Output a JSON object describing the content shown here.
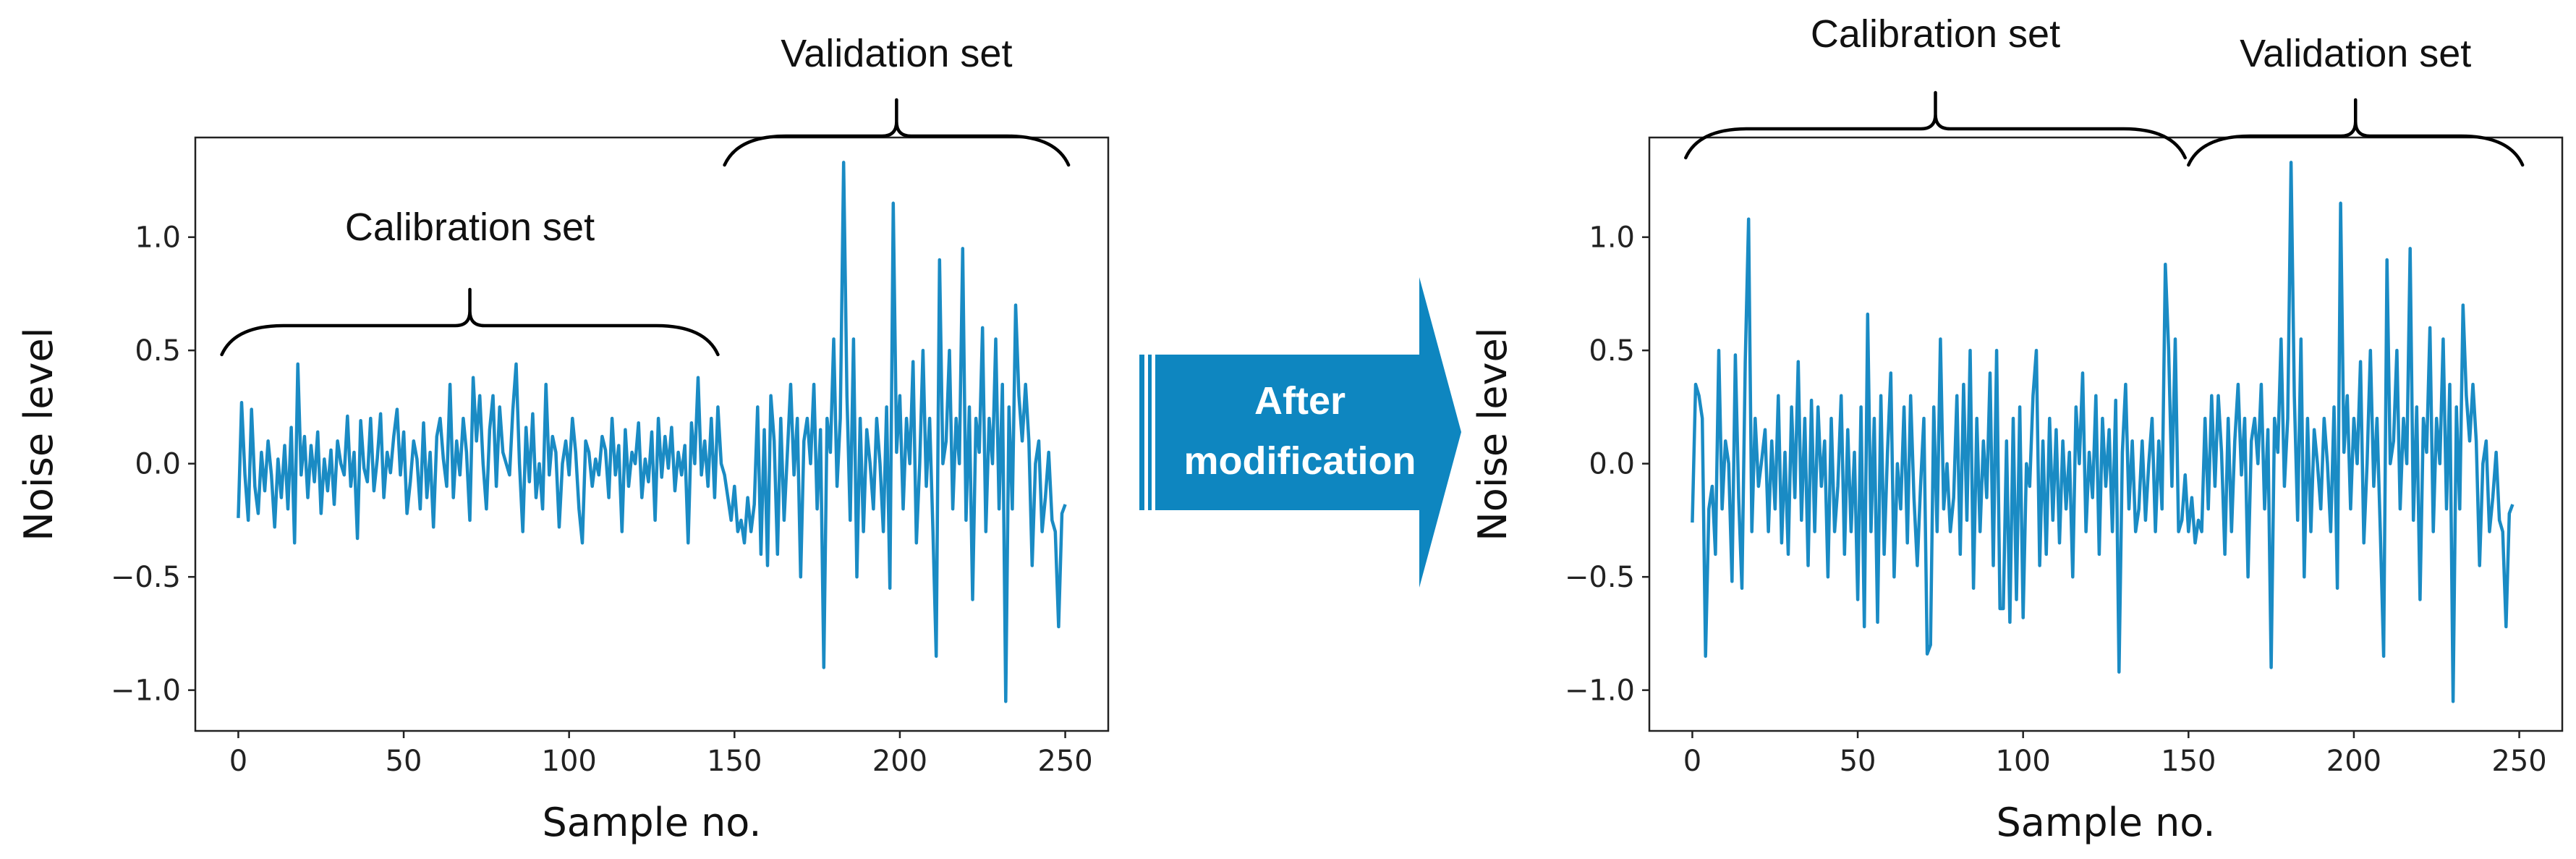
{
  "chart_data": [
    {
      "type": "line",
      "panel": "before",
      "title": "",
      "xlabel": "Sample no.",
      "ylabel": "Noise level",
      "xlim": [
        -13,
        263
      ],
      "ylim": [
        -1.18,
        1.44
      ],
      "xticks": [
        0,
        50,
        100,
        150,
        200,
        250
      ],
      "yticks": [
        -1.0,
        -0.5,
        0.0,
        0.5,
        1.0
      ],
      "xtick_labels": [
        "0",
        "50",
        "100",
        "150",
        "200",
        "250"
      ],
      "ytick_labels": [
        "−1.0",
        "−0.5",
        "0.0",
        "0.5",
        "1.0"
      ],
      "series_color": "#1a8bc4",
      "annotations": {
        "calibration": {
          "label": "Calibration set",
          "x_start": -5,
          "x_end": 145
        },
        "validation": {
          "label": "Validation set",
          "x_start": 147,
          "x_end": 251
        }
      },
      "series": [
        {
          "name": "noise",
          "x_start": 0,
          "values": [
            -0.24,
            0.27,
            -0.05,
            -0.25,
            0.24,
            -0.1,
            -0.22,
            0.05,
            -0.12,
            0.1,
            -0.05,
            -0.28,
            0.02,
            -0.15,
            0.08,
            -0.2,
            0.16,
            -0.35,
            0.44,
            -0.05,
            0.12,
            -0.15,
            0.08,
            -0.08,
            0.14,
            -0.22,
            0.02,
            -0.12,
            0.06,
            -0.18,
            0.1,
            0.0,
            -0.05,
            0.21,
            -0.1,
            0.05,
            -0.33,
            0.19,
            -0.02,
            -0.08,
            0.2,
            -0.12,
            0.02,
            0.22,
            -0.15,
            0.05,
            -0.04,
            0.12,
            0.24,
            -0.05,
            0.14,
            -0.22,
            -0.08,
            0.1,
            0.02,
            -0.2,
            0.18,
            -0.15,
            0.05,
            -0.28,
            0.12,
            0.2,
            0.02,
            -0.1,
            0.35,
            -0.15,
            0.1,
            -0.05,
            0.2,
            0.05,
            -0.25,
            0.38,
            0.1,
            0.3,
            0.0,
            -0.2,
            0.15,
            0.3,
            -0.1,
            0.25,
            0.05,
            0.0,
            -0.05,
            0.24,
            0.44,
            0.0,
            -0.3,
            0.16,
            -0.08,
            0.22,
            -0.15,
            0.0,
            -0.2,
            0.35,
            -0.05,
            0.12,
            0.05,
            -0.28,
            0.0,
            0.1,
            -0.05,
            0.2,
            0.05,
            -0.2,
            -0.35,
            0.1,
            0.05,
            -0.1,
            0.02,
            -0.05,
            0.12,
            0.06,
            -0.15,
            0.2,
            -0.05,
            0.08,
            -0.3,
            0.15,
            -0.1,
            0.05,
            0.0,
            0.18,
            -0.15,
            0.02,
            -0.08,
            0.14,
            -0.25,
            0.2,
            -0.06,
            0.12,
            -0.02,
            0.16,
            -0.12,
            0.05,
            -0.05,
            0.08,
            -0.35,
            0.18,
            0.0,
            0.38,
            -0.05,
            0.1,
            -0.1,
            0.2,
            -0.15,
            0.25,
            0.0,
            -0.05,
            -0.15,
            -0.25,
            -0.1,
            -0.3,
            -0.25,
            -0.35,
            -0.15,
            -0.3,
            -0.18,
            0.25,
            -0.4,
            0.15,
            -0.45,
            0.3,
            0.1,
            -0.4,
            0.2,
            -0.25,
            0.05,
            0.35,
            -0.05,
            0.2,
            -0.5,
            0.1,
            0.2,
            0.0,
            0.35,
            -0.2,
            0.15,
            -0.9,
            0.2,
            0.05,
            0.55,
            -0.1,
            0.2,
            1.33,
            0.3,
            -0.25,
            0.55,
            -0.5,
            0.2,
            -0.3,
            0.15,
            0.0,
            -0.2,
            0.2,
            0.0,
            -0.3,
            0.25,
            -0.55,
            1.15,
            0.05,
            0.3,
            -0.2,
            0.2,
            0.0,
            0.45,
            -0.35,
            0.0,
            0.5,
            -0.1,
            0.2,
            -0.3,
            -0.85,
            0.9,
            0.0,
            0.1,
            0.5,
            -0.2,
            0.2,
            0.0,
            0.95,
            -0.25,
            0.25,
            -0.6,
            0.2,
            0.05,
            0.6,
            -0.3,
            0.2,
            0.0,
            0.55,
            -0.2,
            0.35,
            -1.05,
            0.25,
            -0.2,
            0.7,
            0.3,
            0.1,
            0.35,
            0.1,
            -0.45,
            0.0,
            0.1,
            -0.3,
            -0.15,
            0.05,
            -0.25,
            -0.3,
            -0.72,
            -0.22,
            -0.18
          ]
        }
      ]
    },
    {
      "type": "line",
      "panel": "after",
      "title": "",
      "xlabel": "Sample no.",
      "ylabel": "Noise level",
      "xlim": [
        -13,
        263
      ],
      "ylim": [
        -1.18,
        1.44
      ],
      "xticks": [
        0,
        50,
        100,
        150,
        200,
        250
      ],
      "yticks": [
        -1.0,
        -0.5,
        0.0,
        0.5,
        1.0
      ],
      "xtick_labels": [
        "0",
        "50",
        "100",
        "150",
        "200",
        "250"
      ],
      "ytick_labels": [
        "−1.0",
        "−0.5",
        "0.0",
        "0.5",
        "1.0"
      ],
      "series_color": "#1a8bc4",
      "annotations": {
        "calibration": {
          "label": "Calibration set",
          "x_start": -2,
          "x_end": 149
        },
        "validation": {
          "label": "Validation set",
          "x_start": 150,
          "x_end": 251
        }
      },
      "series": [
        {
          "name": "noise",
          "x_start": 0,
          "values": [
            -0.26,
            0.35,
            0.3,
            0.2,
            -0.85,
            -0.2,
            -0.1,
            -0.4,
            0.5,
            -0.2,
            0.1,
            0.0,
            -0.52,
            0.48,
            -0.15,
            -0.55,
            0.45,
            1.08,
            -0.3,
            0.2,
            -0.1,
            0.02,
            0.15,
            -0.3,
            0.1,
            -0.2,
            0.3,
            -0.35,
            0.05,
            -0.4,
            0.25,
            -0.15,
            0.45,
            -0.25,
            0.2,
            -0.45,
            0.28,
            -0.3,
            0.25,
            -0.1,
            0.1,
            -0.5,
            0.2,
            -0.3,
            -0.1,
            0.3,
            -0.4,
            0.15,
            -0.3,
            0.05,
            -0.6,
            0.25,
            -0.72,
            0.66,
            -0.3,
            0.2,
            -0.7,
            0.3,
            -0.4,
            0.05,
            0.4,
            -0.5,
            0.0,
            -0.2,
            0.25,
            -0.35,
            0.3,
            -0.15,
            -0.45,
            -0.1,
            0.2,
            -0.84,
            -0.8,
            0.25,
            -0.3,
            0.55,
            -0.2,
            0.0,
            -0.3,
            -0.15,
            0.3,
            -0.4,
            0.35,
            -0.25,
            0.5,
            -0.55,
            0.2,
            -0.3,
            0.1,
            -0.15,
            0.4,
            -0.45,
            0.5,
            -0.64,
            -0.64,
            0.1,
            -0.7,
            0.2,
            -0.6,
            0.25,
            -0.68,
            0.0,
            -0.1,
            0.3,
            0.5,
            -0.45,
            0.1,
            -0.4,
            0.2,
            -0.25,
            0.15,
            -0.35,
            0.1,
            -0.2,
            0.05,
            -0.5,
            0.25,
            0.0,
            0.4,
            -0.3,
            0.05,
            -0.15,
            0.3,
            -0.4,
            0.2,
            -0.1,
            0.15,
            -0.3,
            0.28,
            -0.92,
            0.05,
            0.35,
            -0.2,
            0.1,
            -0.3,
            -0.2,
            0.1,
            -0.25,
            0.0,
            0.2,
            -0.3,
            0.1,
            -0.2,
            0.88,
            0.5,
            -0.1,
            0.55,
            -0.3,
            -0.25,
            -0.05,
            -0.3,
            -0.15,
            -0.35,
            -0.25,
            -0.3,
            0.2,
            -0.2,
            0.3,
            -0.1,
            0.3,
            0.05,
            -0.4,
            0.2,
            -0.3,
            0.1,
            0.35,
            -0.05,
            0.2,
            -0.5,
            0.1,
            0.2,
            0.0,
            0.35,
            -0.2,
            0.15,
            -0.9,
            0.2,
            0.05,
            0.55,
            -0.1,
            0.2,
            1.33,
            0.3,
            -0.25,
            0.55,
            -0.5,
            0.2,
            -0.3,
            0.15,
            0.0,
            -0.2,
            0.2,
            0.0,
            -0.3,
            0.25,
            -0.55,
            1.15,
            0.05,
            0.3,
            -0.2,
            0.2,
            0.0,
            0.45,
            -0.35,
            0.0,
            0.5,
            -0.1,
            0.2,
            -0.3,
            -0.85,
            0.9,
            0.0,
            0.1,
            0.5,
            -0.2,
            0.2,
            0.0,
            0.95,
            -0.25,
            0.25,
            -0.6,
            0.2,
            0.05,
            0.6,
            -0.3,
            0.2,
            0.0,
            0.55,
            -0.2,
            0.35,
            -1.05,
            0.25,
            -0.2,
            0.7,
            0.3,
            0.1,
            0.35,
            0.1,
            -0.45,
            0.0,
            0.1,
            -0.3,
            -0.15,
            0.05,
            -0.25,
            -0.3,
            -0.72,
            -0.22,
            -0.18
          ]
        }
      ]
    }
  ],
  "transition_arrow": {
    "line1": "After",
    "line2": "modification",
    "color": "#0e86c0"
  }
}
